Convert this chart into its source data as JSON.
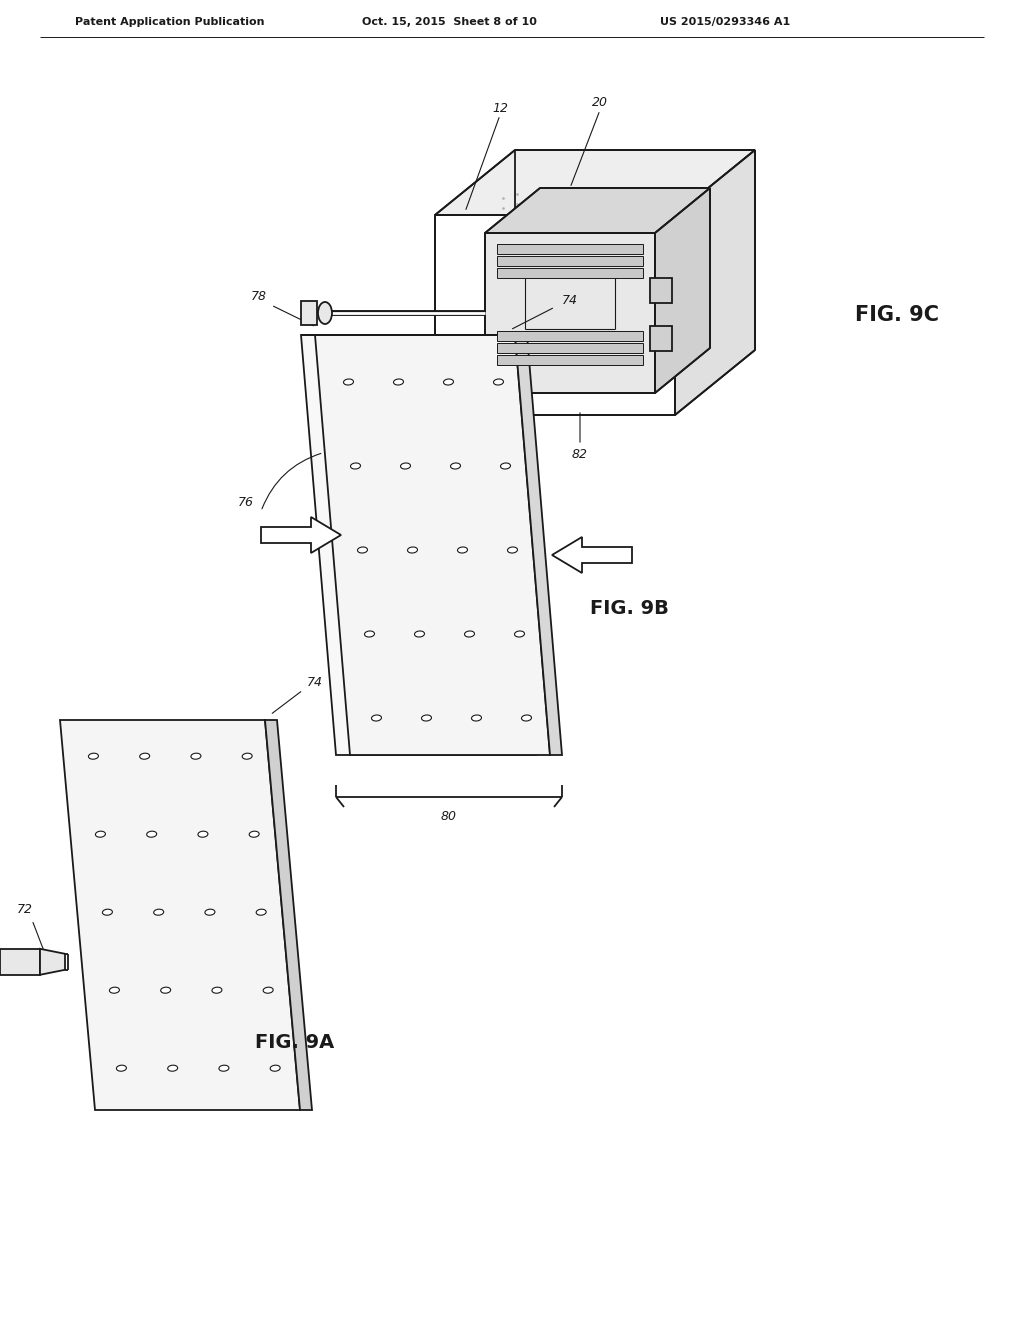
{
  "background_color": "#ffffff",
  "header_left": "Patent Application Publication",
  "header_center": "Oct. 15, 2015  Sheet 8 of 10",
  "header_right": "US 2015/0293346 A1",
  "fig9a_label": "FIG. 9A",
  "fig9b_label": "FIG. 9B",
  "fig9c_label": "FIG. 9C",
  "line_color": "#1a1a1a",
  "line_width": 1.3,
  "thin_lw": 0.8,
  "stipple_color": "#c8c8c8",
  "face_color": "#f2f2f2",
  "edge_color": "#d5d5d5"
}
